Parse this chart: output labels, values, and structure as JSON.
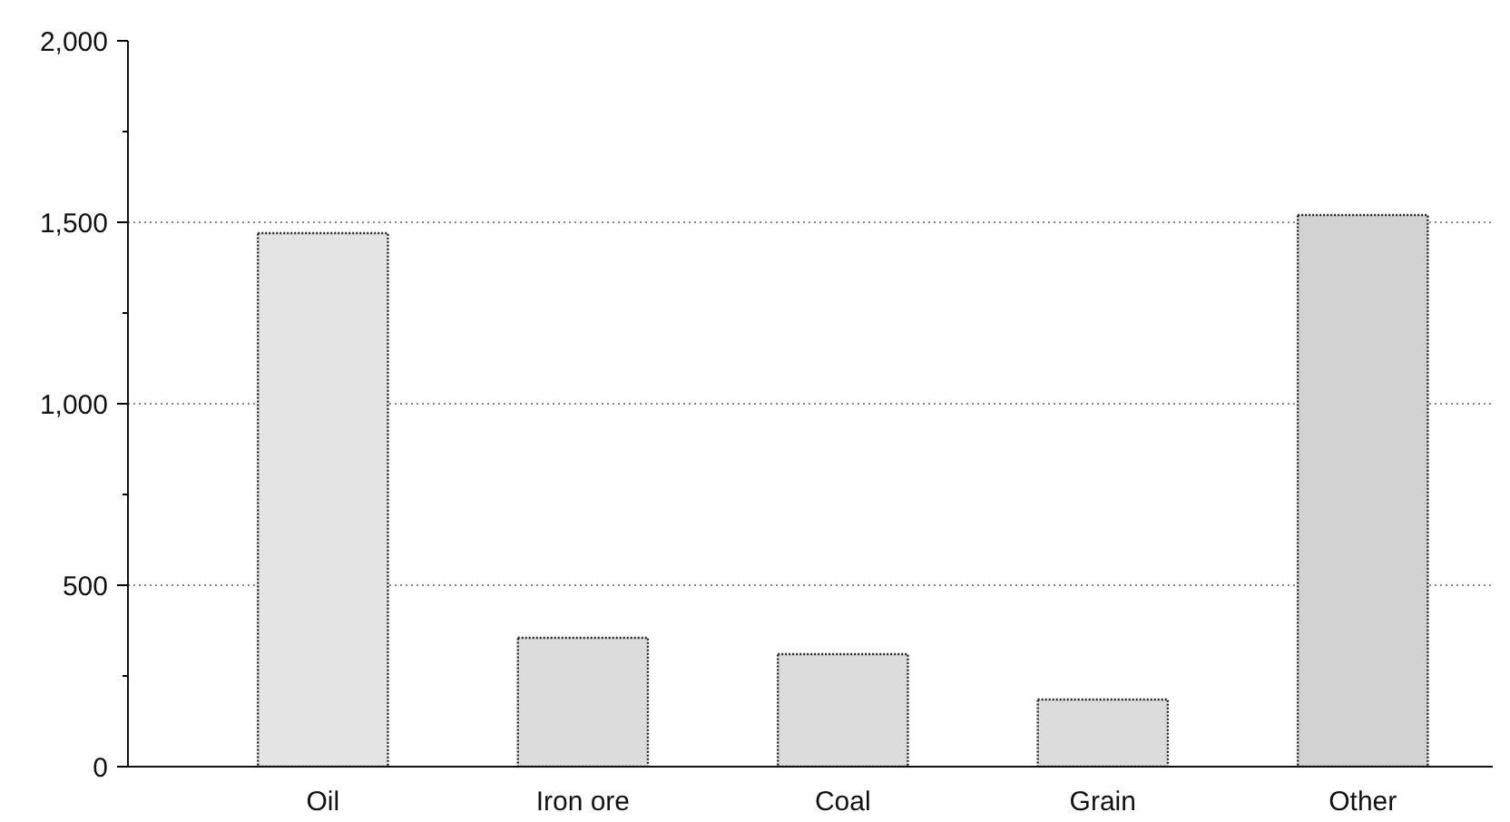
{
  "chart_data": {
    "type": "bar",
    "categories": [
      "Oil",
      "Iron ore",
      "Coal",
      "Grain",
      "Other"
    ],
    "values": [
      1470,
      355,
      310,
      185,
      1520
    ],
    "colors": [
      "#e4e4e4",
      "#dcdcdc",
      "#dcdcdc",
      "#dcdcdc",
      "#d2d2d2"
    ],
    "ylim": [
      0,
      2000
    ],
    "yticks": [
      {
        "value": 0,
        "label": "0"
      },
      {
        "value": 250,
        "label": null
      },
      {
        "value": 500,
        "label": "500"
      },
      {
        "value": 750,
        "label": null
      },
      {
        "value": 1000,
        "label": "1,000"
      },
      {
        "value": 1250,
        "label": null
      },
      {
        "value": 1500,
        "label": "1,500"
      },
      {
        "value": 1750,
        "label": null
      },
      {
        "value": 2000,
        "label": "2,000"
      }
    ],
    "grid": "y"
  }
}
